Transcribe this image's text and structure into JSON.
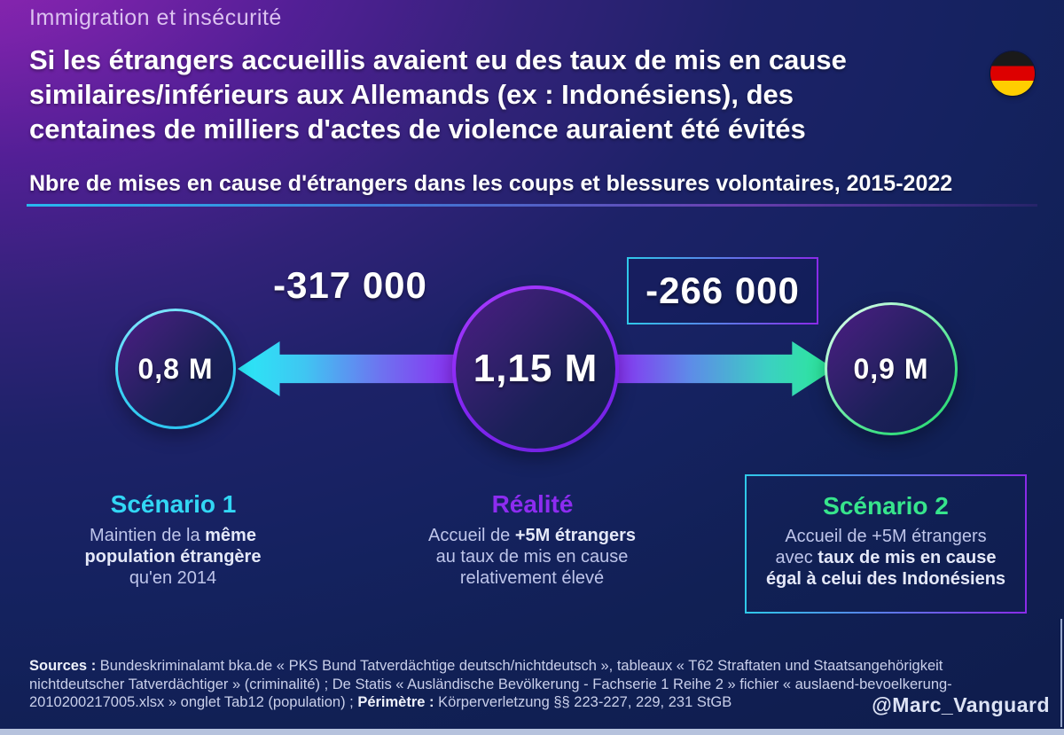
{
  "header": {
    "kicker": "Immigration et insécurité",
    "title_line1": "Si les étrangers accueillis avaient eu des taux de mis en cause",
    "title_line2": "similaires/inférieurs aux Allemands (ex : Indonésiens), des",
    "title_line3": "centaines de milliers d'actes de violence auraient été évités",
    "subtitle": "Nbre de mises en cause d'étrangers dans les coups et blessures volontaires, 2015-2022",
    "flag_icon": "german-flag-icon"
  },
  "diagram": {
    "left_delta": "-317 000",
    "right_delta": "-266 000",
    "scenario1_value": "0,8 M",
    "reality_value": "1,15 M",
    "scenario2_value": "0,9 M"
  },
  "scenario1": {
    "title": "Scénario 1",
    "d1_pre": "Maintien de la ",
    "d1_bold": "même",
    "d2_bold": "population étrangère",
    "d3": "qu'en 2014"
  },
  "reality": {
    "title": "Réalité",
    "d1_pre": "Accueil de ",
    "d1_bold": "+5M étrangers",
    "d2": "au taux de mis en cause",
    "d3": "relativement élevé"
  },
  "scenario2": {
    "title": "Scénario 2",
    "d1": "Accueil de +5M étrangers",
    "d2_pre": "avec ",
    "d2_bold": "taux de mis en cause",
    "d3_bold": "égal à celui des Indonésiens"
  },
  "footer": {
    "sources_label": "Sources :",
    "sources_line1": " Bundeskriminalamt bka.de « PKS Bund Tatverdächtige deutsch/nichtdeutsch », tableaux « T62 Straftaten und Staatsangehörigkeit",
    "sources_line2": "nichtdeutscher Tatverdächtiger » (criminalité) ; De Statis « Ausländische Bevölkerung - Fachserie 1 Reihe 2 » fichier « auslaend-bevoelkerung-",
    "sources_line3_pre": "2010200217005.xlsx » onglet Tab12 (population) ; ",
    "perimetre_label": "Périmètre :",
    "sources_line3_post": " Körperverletzung §§ 223-227, 229, 231 StGB",
    "handle": "@Marc_Vanguard"
  },
  "colors": {
    "accent_cyan": "#32d7f5",
    "accent_purple": "#8d2cf0",
    "accent_green": "#37e58c",
    "flag_black": "#1a1a1a",
    "flag_red": "#dd0000",
    "flag_gold": "#ffce00"
  }
}
